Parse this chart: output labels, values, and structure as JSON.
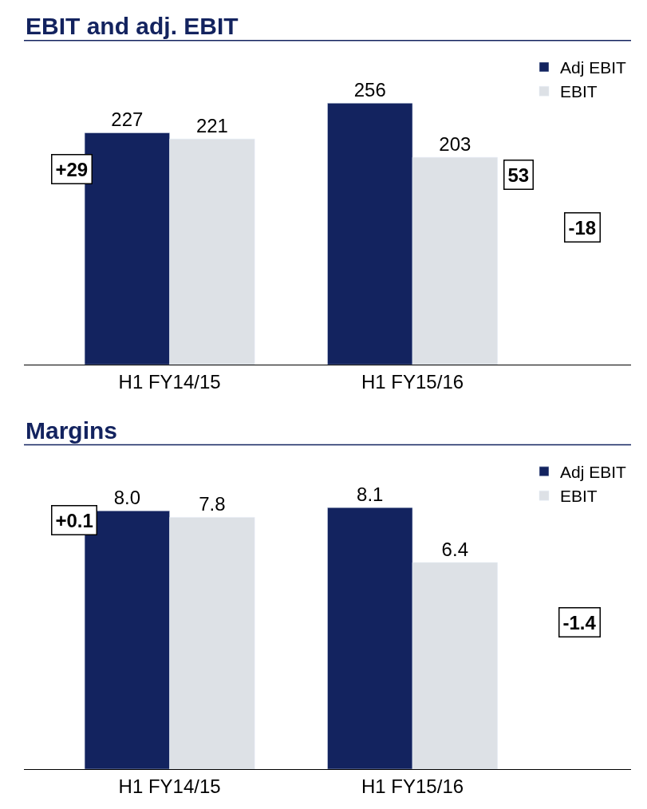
{
  "chart_data": [
    {
      "type": "bar",
      "title": "EBIT and adj. EBIT",
      "categories": [
        "H1 FY14/15",
        "H1 FY15/16"
      ],
      "series": [
        {
          "name": "Adj EBIT",
          "color": "#13235f",
          "values": [
            227,
            256
          ],
          "value_labels": [
            "227",
            "256"
          ]
        },
        {
          "name": "EBIT",
          "color": "#dde1e6",
          "values": [
            221,
            203
          ],
          "value_labels": [
            "221",
            "203"
          ]
        }
      ],
      "tick_labels": "x",
      "legend": "top right",
      "annotations": [
        "+29",
        "53",
        "-18"
      ]
    },
    {
      "type": "bar",
      "title": "Margins",
      "categories": [
        "H1 FY14/15",
        "H1 FY15/16"
      ],
      "series": [
        {
          "name": "Adj EBIT",
          "color": "#13235f",
          "values": [
            8.0,
            8.1
          ],
          "value_labels": [
            "8.0",
            "8.1"
          ]
        },
        {
          "name": "EBIT",
          "color": "#dde1e6",
          "values": [
            7.8,
            6.4
          ],
          "value_labels": [
            "7.8",
            "6.4"
          ]
        }
      ],
      "tick_labels": "x",
      "legend": "top right",
      "annotations": [
        "+0.1",
        "-1.4"
      ]
    }
  ]
}
